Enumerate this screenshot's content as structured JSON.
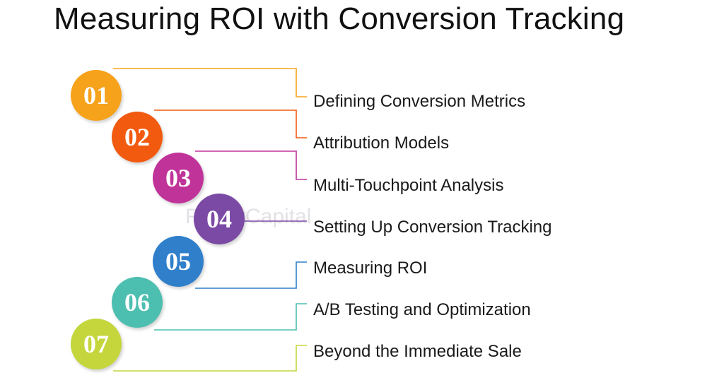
{
  "title": "Measuring ROI with Conversion Tracking",
  "watermark": "FasterCapital",
  "steps": [
    {
      "number": "01",
      "label": "Defining Conversion Metrics",
      "color": "#f7a21b"
    },
    {
      "number": "02",
      "label": "Attribution Models",
      "color": "#f15a0f"
    },
    {
      "number": "03",
      "label": "Multi-Touchpoint Analysis",
      "color": "#c0349a"
    },
    {
      "number": "04",
      "label": "Setting Up Conversion Tracking",
      "color": "#7b4aa5"
    },
    {
      "number": "05",
      "label": "Measuring ROI",
      "color": "#2f7fcb"
    },
    {
      "number": "06",
      "label": "A/B Testing and Optimization",
      "color": "#4dbfb0"
    },
    {
      "number": "07",
      "label": "Beyond the Immediate Sale",
      "color": "#c4d63c"
    }
  ]
}
